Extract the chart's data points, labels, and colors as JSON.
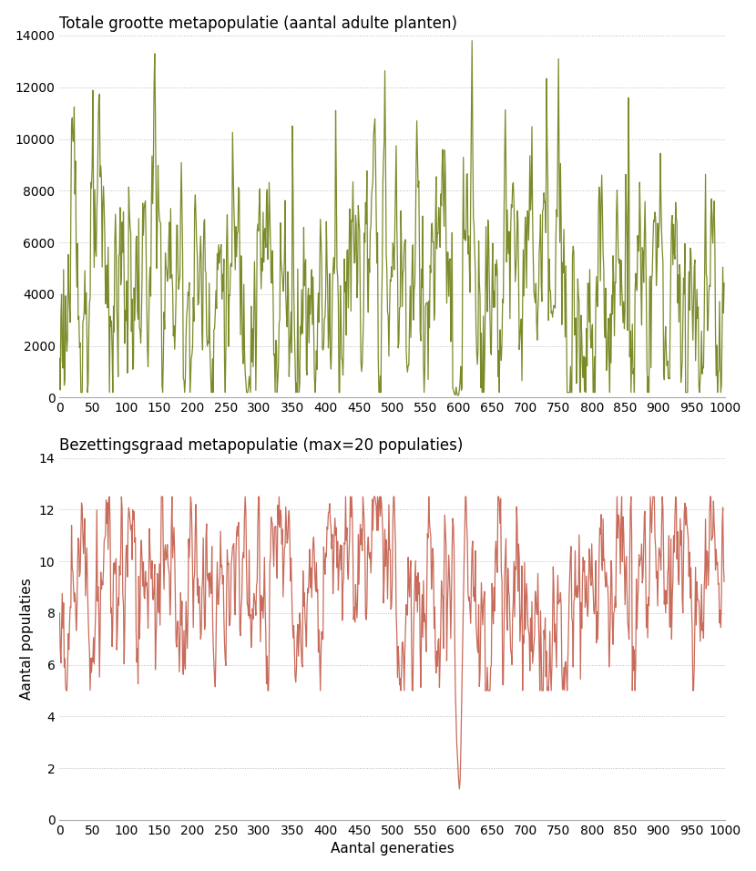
{
  "title1": "Totale grootte metapopulatie (aantal adulte planten)",
  "title2": "Bezettingsgraad metapopulatie (max=20 populaties)",
  "xlabel": "Aantal generaties",
  "ylabel1": "",
  "ylabel2": "Aantal populaties",
  "color1": "#7a8c2a",
  "color2": "#c96b5a",
  "xlim": [
    0,
    1000
  ],
  "ylim1": [
    0,
    14000
  ],
  "ylim2": [
    0,
    14
  ],
  "yticks1": [
    0,
    2000,
    4000,
    6000,
    8000,
    10000,
    12000,
    14000
  ],
  "yticks2": [
    0,
    2,
    4,
    6,
    8,
    10,
    12,
    14
  ],
  "xticks": [
    0,
    50,
    100,
    150,
    200,
    250,
    300,
    350,
    400,
    450,
    500,
    550,
    600,
    650,
    700,
    750,
    800,
    850,
    900,
    950,
    1000
  ],
  "linewidth": 0.9,
  "bg_color": "#ffffff",
  "grid_color": "#bbbbbb",
  "title_fontsize": 12,
  "label_fontsize": 11,
  "tick_fontsize": 10
}
